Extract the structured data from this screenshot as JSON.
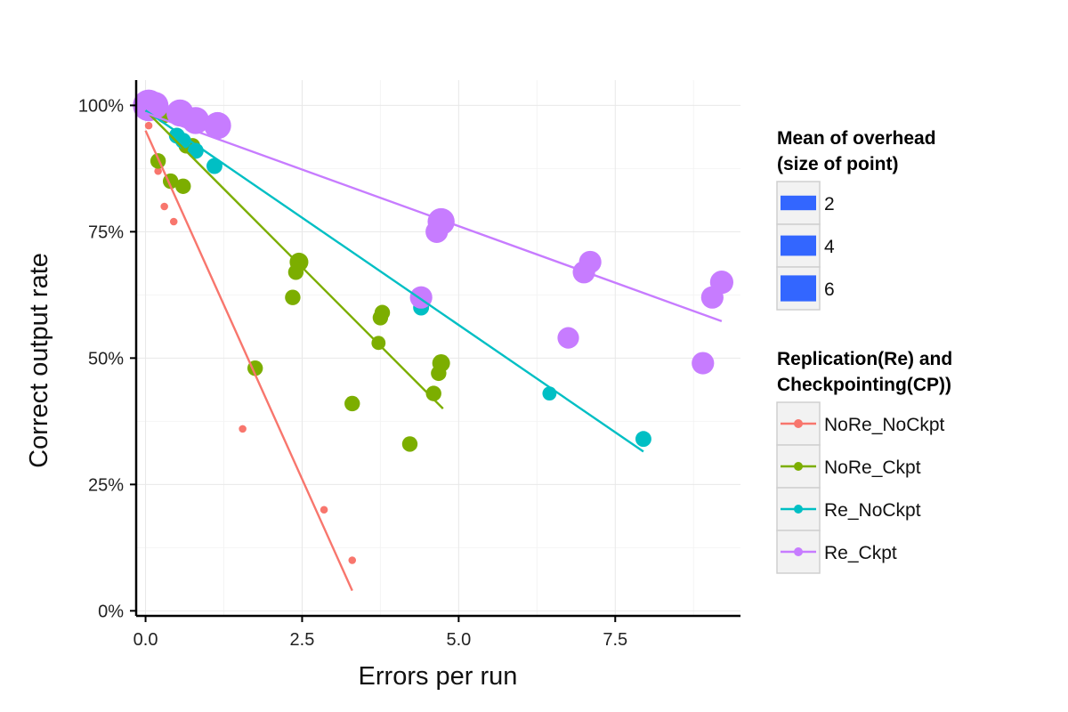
{
  "chart_data": {
    "type": "scatter",
    "title": "",
    "xlabel": "Errors per run",
    "ylabel": "Correct output rate",
    "xlim": [
      -0.15,
      9.5
    ],
    "ylim": [
      -0.01,
      1.05
    ],
    "x_ticks": [
      0,
      2.5,
      5,
      7.5
    ],
    "x_tick_labels": [
      "0.0",
      "2.5",
      "5.0",
      "7.5"
    ],
    "y_ticks": [
      0,
      0.25,
      0.5,
      0.75,
      1.0
    ],
    "y_tick_labels": [
      "0%",
      "25%",
      "50%",
      "75%",
      "100%"
    ],
    "grid": true,
    "legend_position": "right",
    "size_legend": {
      "title_lines": [
        "Mean of overhead",
        "(size of point)"
      ],
      "entries": [
        {
          "label": "2",
          "value": 2
        },
        {
          "label": "4",
          "value": 4
        },
        {
          "label": "6",
          "value": 6
        }
      ],
      "key_color": "#3366FF"
    },
    "color_legend": {
      "title_lines": [
        "Replication(Re) and",
        "Checkpointing(CP))"
      ]
    },
    "series": [
      {
        "name": "NoRe_NoCkpt",
        "color": "#F8766D",
        "points": [
          {
            "x": 0.0,
            "y": 0.99,
            "size": 0.8
          },
          {
            "x": 0.05,
            "y": 0.96,
            "size": 0.8
          },
          {
            "x": 0.2,
            "y": 0.87,
            "size": 0.8
          },
          {
            "x": 0.3,
            "y": 0.8,
            "size": 0.8
          },
          {
            "x": 0.45,
            "y": 0.77,
            "size": 0.8
          },
          {
            "x": 1.55,
            "y": 0.36,
            "size": 0.8
          },
          {
            "x": 2.85,
            "y": 0.2,
            "size": 0.8
          },
          {
            "x": 3.3,
            "y": 0.1,
            "size": 0.8
          }
        ],
        "trend": {
          "x1": 0.0,
          "y1": 0.95,
          "x2": 3.3,
          "y2": 0.04
        }
      },
      {
        "name": "NoRe_Ckpt",
        "color": "#7CAE00",
        "points": [
          {
            "x": 0.2,
            "y": 0.89,
            "size": 2.5
          },
          {
            "x": 0.3,
            "y": 0.98,
            "size": 2.5
          },
          {
            "x": 0.4,
            "y": 0.85,
            "size": 2.5
          },
          {
            "x": 0.6,
            "y": 0.84,
            "size": 2.5
          },
          {
            "x": 0.65,
            "y": 0.92,
            "size": 2.5
          },
          {
            "x": 0.75,
            "y": 0.92,
            "size": 2.5
          },
          {
            "x": 1.75,
            "y": 0.48,
            "size": 2.5
          },
          {
            "x": 2.35,
            "y": 0.62,
            "size": 2.5
          },
          {
            "x": 2.4,
            "y": 0.67,
            "size": 2.5
          },
          {
            "x": 2.45,
            "y": 0.69,
            "size": 3.2
          },
          {
            "x": 3.3,
            "y": 0.41,
            "size": 2.5
          },
          {
            "x": 3.72,
            "y": 0.53,
            "size": 2.2
          },
          {
            "x": 3.75,
            "y": 0.58,
            "size": 2.5
          },
          {
            "x": 3.78,
            "y": 0.59,
            "size": 2.5
          },
          {
            "x": 4.22,
            "y": 0.33,
            "size": 2.5
          },
          {
            "x": 4.6,
            "y": 0.43,
            "size": 2.5
          },
          {
            "x": 4.68,
            "y": 0.47,
            "size": 2.5
          },
          {
            "x": 4.72,
            "y": 0.49,
            "size": 3.0
          }
        ],
        "trend": {
          "x1": 0.0,
          "y1": 0.99,
          "x2": 4.75,
          "y2": 0.4
        }
      },
      {
        "name": "Re_NoCkpt",
        "color": "#00BFC4",
        "points": [
          {
            "x": 0.5,
            "y": 0.94,
            "size": 2.6
          },
          {
            "x": 0.6,
            "y": 0.93,
            "size": 2.6
          },
          {
            "x": 0.8,
            "y": 0.91,
            "size": 2.6
          },
          {
            "x": 1.1,
            "y": 0.88,
            "size": 2.6
          },
          {
            "x": 4.4,
            "y": 0.6,
            "size": 2.6
          },
          {
            "x": 6.45,
            "y": 0.43,
            "size": 2.2
          },
          {
            "x": 7.95,
            "y": 0.34,
            "size": 2.6
          }
        ],
        "trend": {
          "x1": 0.0,
          "y1": 0.99,
          "x2": 7.95,
          "y2": 0.315
        }
      },
      {
        "name": "Re_Ckpt",
        "color": "#C77CFF",
        "points": [
          {
            "x": 0.05,
            "y": 1.0,
            "size": 6.0
          },
          {
            "x": 0.15,
            "y": 1.0,
            "size": 5.0
          },
          {
            "x": 0.55,
            "y": 0.985,
            "size": 5.0
          },
          {
            "x": 0.8,
            "y": 0.97,
            "size": 5.0
          },
          {
            "x": 1.15,
            "y": 0.96,
            "size": 5.0
          },
          {
            "x": 4.4,
            "y": 0.62,
            "size": 4.0
          },
          {
            "x": 4.65,
            "y": 0.75,
            "size": 4.0
          },
          {
            "x": 4.72,
            "y": 0.77,
            "size": 5.0
          },
          {
            "x": 6.75,
            "y": 0.54,
            "size": 3.8
          },
          {
            "x": 7.0,
            "y": 0.67,
            "size": 4.0
          },
          {
            "x": 7.1,
            "y": 0.69,
            "size": 4.0
          },
          {
            "x": 8.9,
            "y": 0.49,
            "size": 4.0
          },
          {
            "x": 9.05,
            "y": 0.62,
            "size": 4.0
          },
          {
            "x": 9.2,
            "y": 0.65,
            "size": 4.2
          }
        ],
        "trend": {
          "x1": 0.0,
          "y1": 0.985,
          "x2": 9.2,
          "y2": 0.573
        }
      }
    ]
  }
}
